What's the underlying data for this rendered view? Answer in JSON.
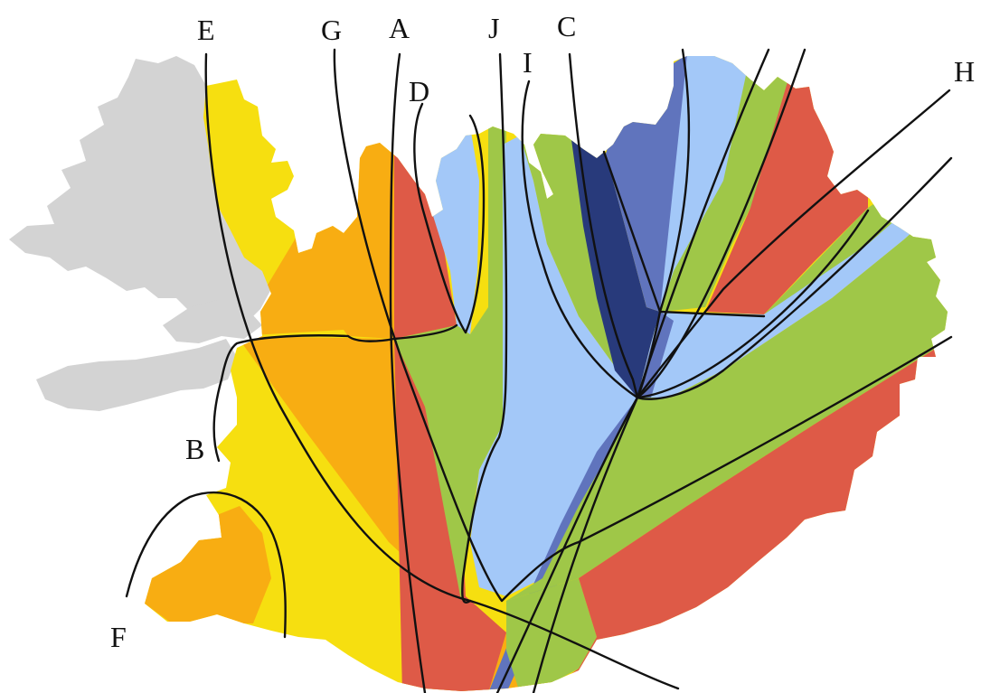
{
  "map": {
    "colors": {
      "background": "#ffffff",
      "grey": "#d3d3d3",
      "yellow": "#f6df10",
      "orange": "#f8ad12",
      "red": "#de5a47",
      "green": "#9fc748",
      "lightblue": "#a3c8f8",
      "midblue": "#6074bd",
      "darkblue": "#283a7b",
      "line": "#111111"
    },
    "labels": {
      "A": "A",
      "B": "B",
      "C": "C",
      "D": "D",
      "E": "E",
      "F": "F",
      "G": "G",
      "H": "H",
      "I": "I",
      "J": "J"
    }
  }
}
